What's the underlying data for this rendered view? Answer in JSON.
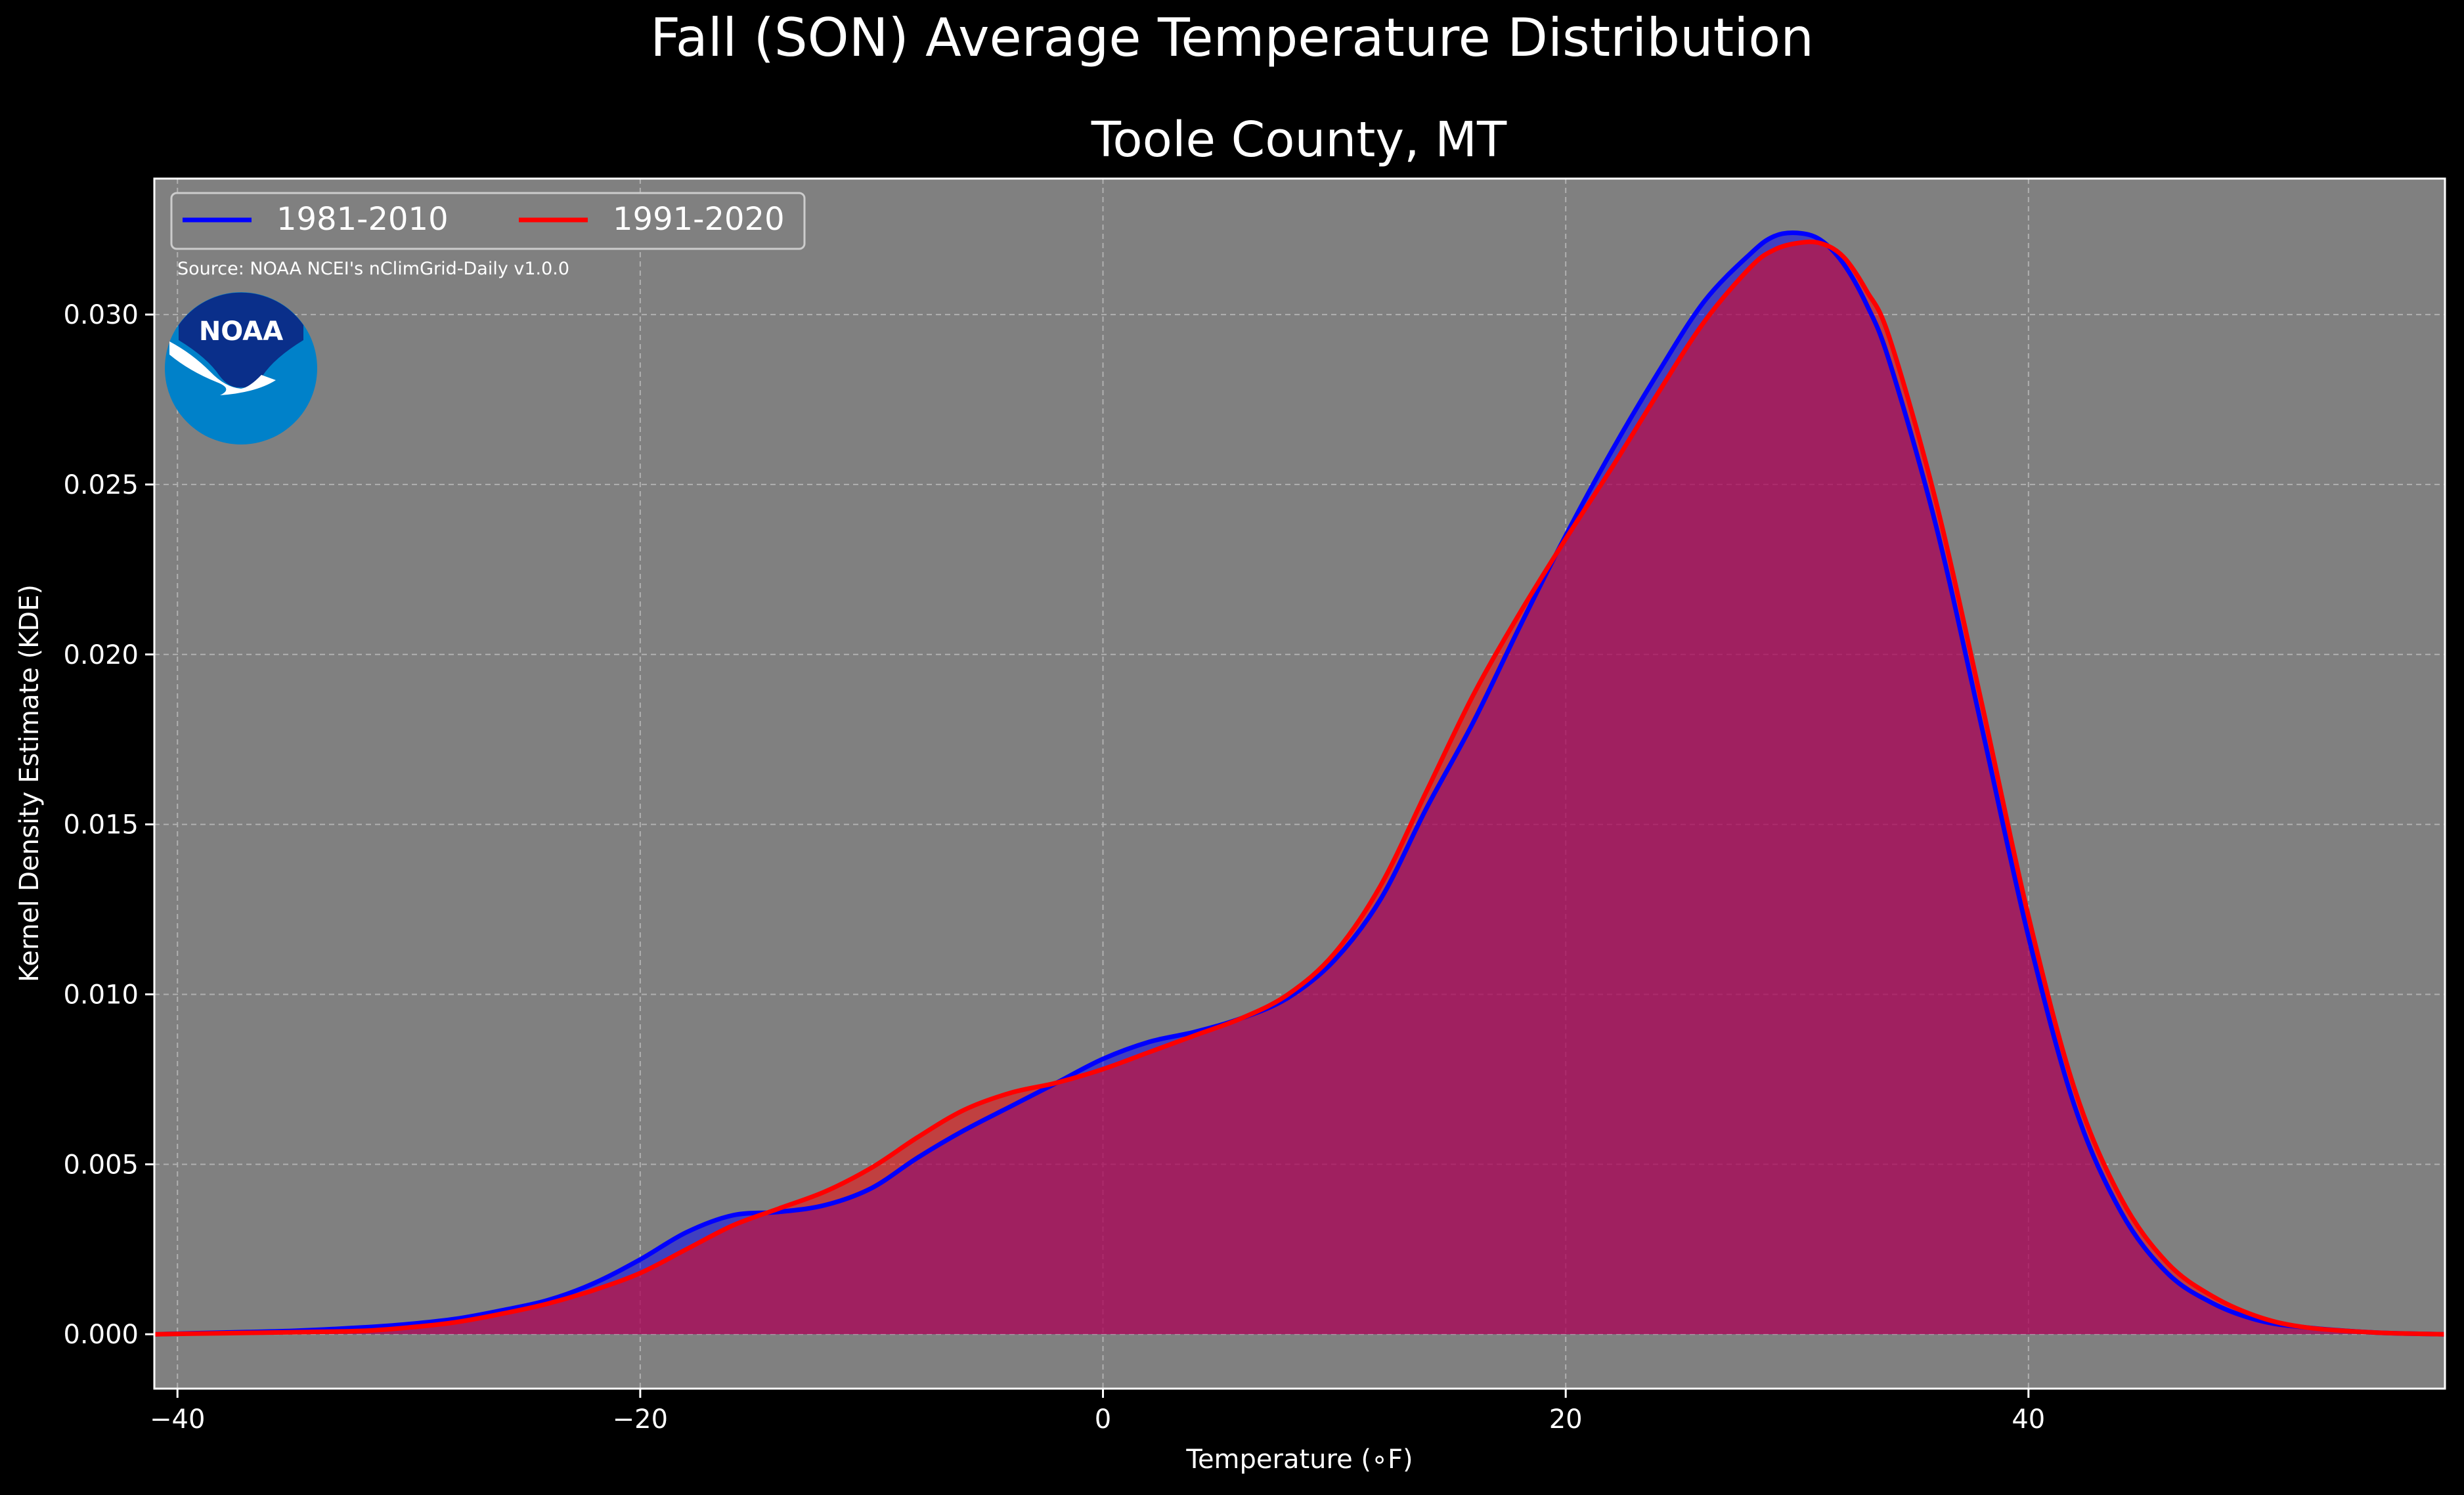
{
  "chart_data": {
    "type": "area",
    "suptitle": "Fall (SON) Average Temperature Distribution",
    "title": "Toole County, MT",
    "xlabel": "Temperature (∘F)",
    "ylabel": "Kernel Density Estimate (KDE)",
    "source": "Source: NOAA NCEI's nClimGrid-Daily v1.0.0",
    "logo_text": "NOAA",
    "xlim": [
      -41,
      58
    ],
    "ylim": [
      -0.0016,
      0.034
    ],
    "x_ticks": [
      {
        "value": -40,
        "label": "−40"
      },
      {
        "value": -20,
        "label": "−20"
      },
      {
        "value": 0,
        "label": "0"
      },
      {
        "value": 20,
        "label": "20"
      },
      {
        "value": 40,
        "label": "40"
      }
    ],
    "y_ticks": [
      {
        "value": 0.0,
        "label": "0.000"
      },
      {
        "value": 0.005,
        "label": "0.005"
      },
      {
        "value": 0.01,
        "label": "0.010"
      },
      {
        "value": 0.015,
        "label": "0.015"
      },
      {
        "value": 0.02,
        "label": "0.020"
      },
      {
        "value": 0.025,
        "label": "0.025"
      },
      {
        "value": 0.03,
        "label": "0.030"
      }
    ],
    "grid": true,
    "legend_position": "top-left",
    "background_color": "#808080",
    "series": [
      {
        "name": "1981-2010",
        "color": "#0000ff",
        "fill": "#0000ff",
        "x": [
          -41,
          -38,
          -35,
          -32,
          -30,
          -28,
          -26,
          -24,
          -22,
          -20,
          -18,
          -16,
          -14,
          -12,
          -10,
          -8,
          -6,
          -4,
          -2,
          0,
          2,
          4,
          6,
          8,
          10,
          12,
          14,
          16,
          18,
          20,
          22,
          24,
          26,
          28,
          29,
          30,
          31,
          32,
          33,
          34,
          36,
          38,
          40,
          42,
          44,
          46,
          48,
          50,
          52,
          55,
          58
        ],
        "y": [
          0,
          5e-05,
          0.0001,
          0.0002,
          0.0003,
          0.00045,
          0.0007,
          0.001,
          0.0015,
          0.0022,
          0.003,
          0.0035,
          0.0036,
          0.0038,
          0.0043,
          0.0052,
          0.006,
          0.0067,
          0.0074,
          0.0081,
          0.0086,
          0.0089,
          0.0093,
          0.0099,
          0.011,
          0.0128,
          0.0155,
          0.018,
          0.0208,
          0.0235,
          0.026,
          0.0283,
          0.0304,
          0.0318,
          0.0323,
          0.0324,
          0.0322,
          0.0315,
          0.0303,
          0.0286,
          0.0238,
          0.0178,
          0.0117,
          0.0067,
          0.0036,
          0.0018,
          0.0009,
          0.0004,
          0.0002,
          5e-05,
          0
        ]
      },
      {
        "name": "1991-2020",
        "color": "#ff0000",
        "fill": "#ff0000",
        "x": [
          -41,
          -38,
          -35,
          -32,
          -30,
          -28,
          -26,
          -24,
          -22,
          -20,
          -18,
          -16,
          -14,
          -12,
          -10,
          -8,
          -6,
          -4,
          -2,
          0,
          2,
          4,
          6,
          8,
          10,
          12,
          14,
          16,
          18,
          20,
          22,
          24,
          26,
          28,
          29,
          30,
          31,
          32,
          33,
          34,
          36,
          38,
          40,
          42,
          44,
          46,
          48,
          50,
          52,
          55,
          58
        ],
        "y": [
          0,
          3e-05,
          6e-05,
          0.0001,
          0.0002,
          0.00035,
          0.0006,
          0.0009,
          0.0013,
          0.0018,
          0.0025,
          0.0032,
          0.0037,
          0.0042,
          0.0049,
          0.0058,
          0.0066,
          0.0071,
          0.0074,
          0.0078,
          0.0083,
          0.0088,
          0.0093,
          0.01,
          0.0112,
          0.0132,
          0.016,
          0.0188,
          0.0212,
          0.0234,
          0.0255,
          0.0277,
          0.0298,
          0.0314,
          0.0319,
          0.0321,
          0.0321,
          0.0317,
          0.0307,
          0.0293,
          0.0245,
          0.0185,
          0.0123,
          0.0072,
          0.004,
          0.0021,
          0.0011,
          0.0005,
          0.0002,
          5e-05,
          0
        ]
      }
    ]
  }
}
